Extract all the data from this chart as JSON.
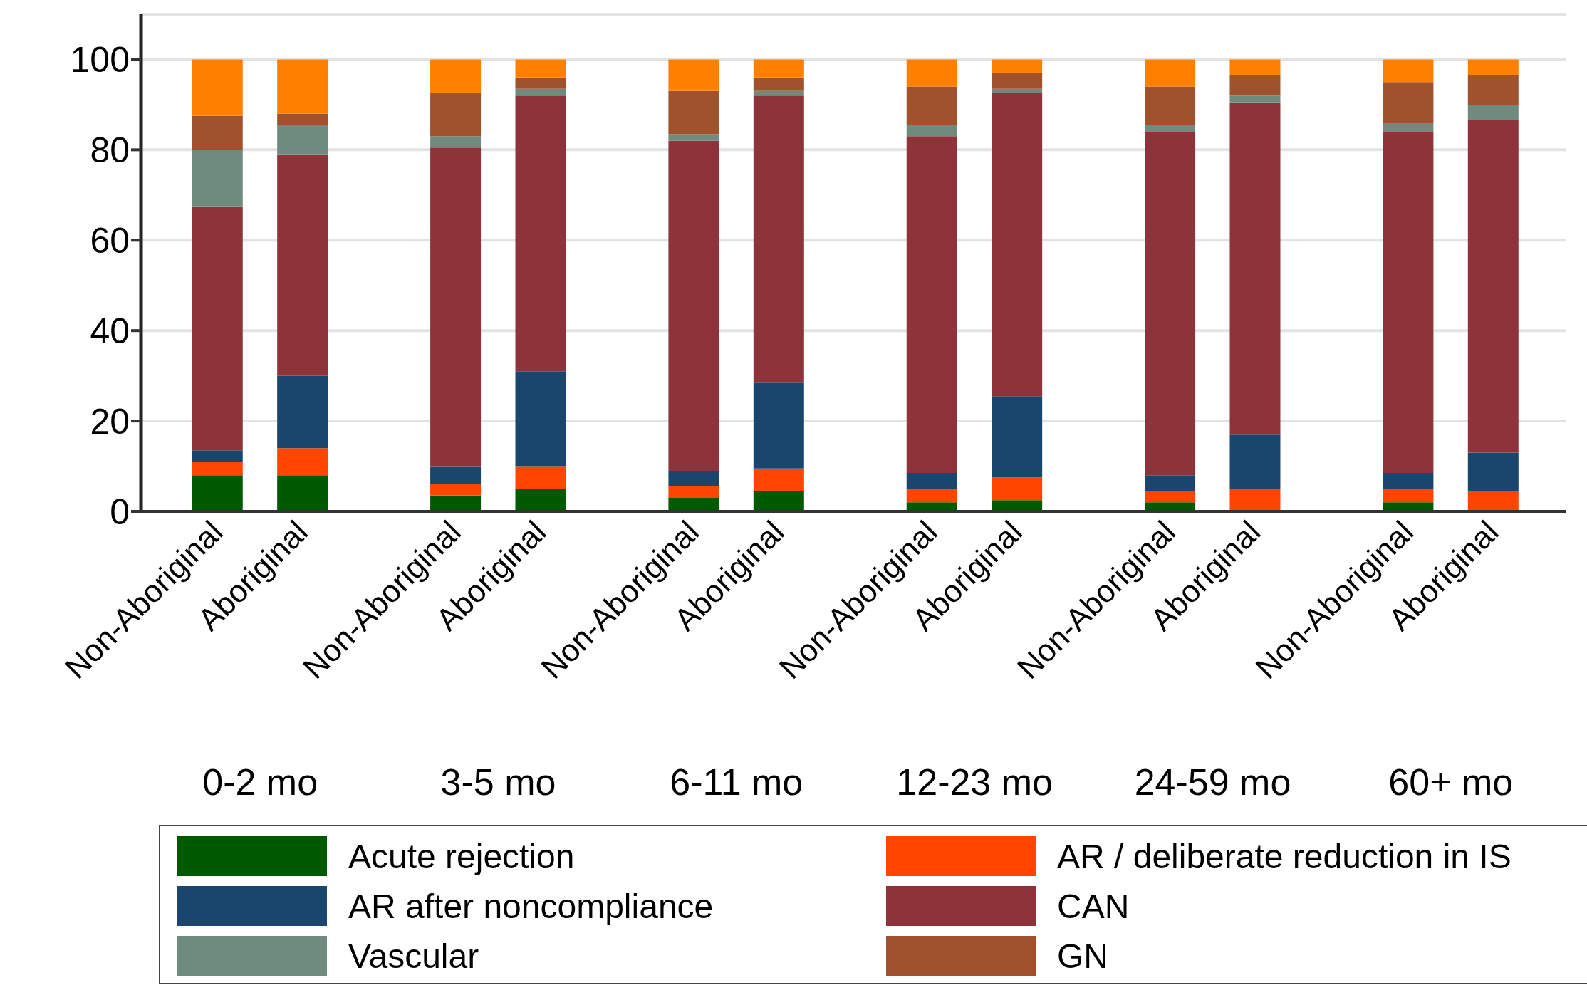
{
  "chart_data": {
    "type": "bar",
    "stacked": true,
    "categories": [
      "Non-Aboriginal",
      "Aboriginal",
      "Non-Aboriginal",
      "Aboriginal",
      "Non-Aboriginal",
      "Aboriginal",
      "Non-Aboriginal",
      "Aboriginal",
      "Non-Aboriginal",
      "Aboriginal",
      "Non-Aboriginal",
      "Aboriginal"
    ],
    "annotations": [
      "0-2 mo",
      "3-5 mo",
      "6-11 mo",
      "12-23 mo",
      "24-59 mo",
      "60+ mo"
    ],
    "series": [
      {
        "name": "Acute rejection",
        "color": "#005a00",
        "values": [
          8,
          8,
          3.5,
          5,
          3,
          4.5,
          2,
          2.5,
          2,
          0,
          2,
          0
        ]
      },
      {
        "name": "AR / deliberate reduction in IS",
        "color": "#ff4500",
        "values": [
          3,
          6,
          2.5,
          5,
          2.5,
          5,
          3,
          5,
          2.5,
          5,
          3,
          4.5
        ]
      },
      {
        "name": "AR after noncompliance",
        "color": "#1a466e",
        "values": [
          2.5,
          16,
          4,
          21,
          3.5,
          19,
          3.5,
          18,
          3.5,
          12,
          3.5,
          8.5
        ]
      },
      {
        "name": "CAN",
        "color": "#8f333a",
        "values": [
          54,
          49,
          70.5,
          61,
          73,
          63.5,
          74.5,
          67,
          76,
          73.5,
          75.5,
          73.5
        ]
      },
      {
        "name": "Vascular",
        "color": "#6e8b7e",
        "values": [
          12.5,
          6.5,
          2.5,
          1.5,
          1.5,
          1,
          2.5,
          1,
          1.5,
          1.5,
          2,
          3.5
        ]
      },
      {
        "name": "GN",
        "color": "#a0522d",
        "values": [
          7.5,
          2.5,
          9.5,
          2.5,
          9.5,
          3,
          8.5,
          3.5,
          8.5,
          4.5,
          9,
          6.5
        ]
      },
      {
        "color": "#ff8000",
        "values": [
          12.5,
          12,
          7.5,
          4,
          7,
          4,
          6,
          3,
          6,
          3.5,
          5,
          3.5
        ]
      }
    ],
    "ylim": [
      0,
      110
    ],
    "yticks": [
      0,
      20,
      40,
      60,
      80,
      100
    ],
    "grid": "y",
    "legend": "bottom"
  }
}
